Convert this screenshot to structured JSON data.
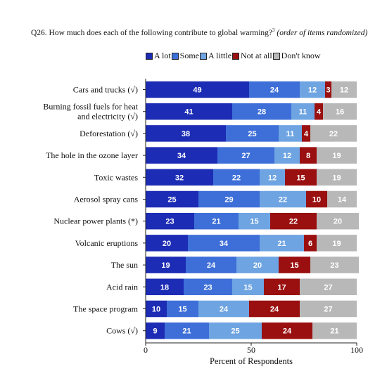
{
  "title": {
    "main": "Q26. How much does each of the following contribute to global warming?",
    "sup": "3",
    "note": "(order of items randomized)"
  },
  "colors": {
    "A lot": "#1c2cb4",
    "Some": "#3e6fd8",
    "A little": "#6ea4e2",
    "Not at all": "#9a1010",
    "Don't know": "#b8b8b8"
  },
  "chart_data": {
    "type": "bar",
    "orientation": "horizontal",
    "stacked": true,
    "categories": [
      "Cars and trucks (√)",
      "Burning fossil fuels for heat\nand electricity (√)",
      "Deforestation (√)",
      "The hole in the ozone layer",
      "Toxic wastes",
      "Aerosol spray cans",
      "Nuclear power plants (*)",
      "Volcanic eruptions",
      "The sun",
      "Acid rain",
      "The space program",
      "Cows (√)"
    ],
    "series": [
      {
        "name": "A lot",
        "values": [
          49,
          41,
          38,
          34,
          32,
          25,
          23,
          20,
          19,
          18,
          10,
          9
        ]
      },
      {
        "name": "Some",
        "values": [
          24,
          28,
          25,
          27,
          22,
          29,
          21,
          34,
          24,
          23,
          15,
          21
        ]
      },
      {
        "name": "A little",
        "values": [
          12,
          11,
          11,
          12,
          12,
          22,
          15,
          21,
          20,
          15,
          24,
          25
        ]
      },
      {
        "name": "Not at all",
        "values": [
          3,
          4,
          4,
          8,
          15,
          10,
          22,
          6,
          15,
          17,
          24,
          24
        ]
      },
      {
        "name": "Don't know",
        "values": [
          12,
          16,
          22,
          19,
          19,
          14,
          20,
          19,
          23,
          27,
          27,
          21
        ]
      }
    ],
    "xlabel": "Percent of Respondents",
    "ylabel": "",
    "xlim": [
      0,
      100
    ],
    "xticks": [
      0,
      50,
      100
    ],
    "legend": "top",
    "grid": false
  }
}
